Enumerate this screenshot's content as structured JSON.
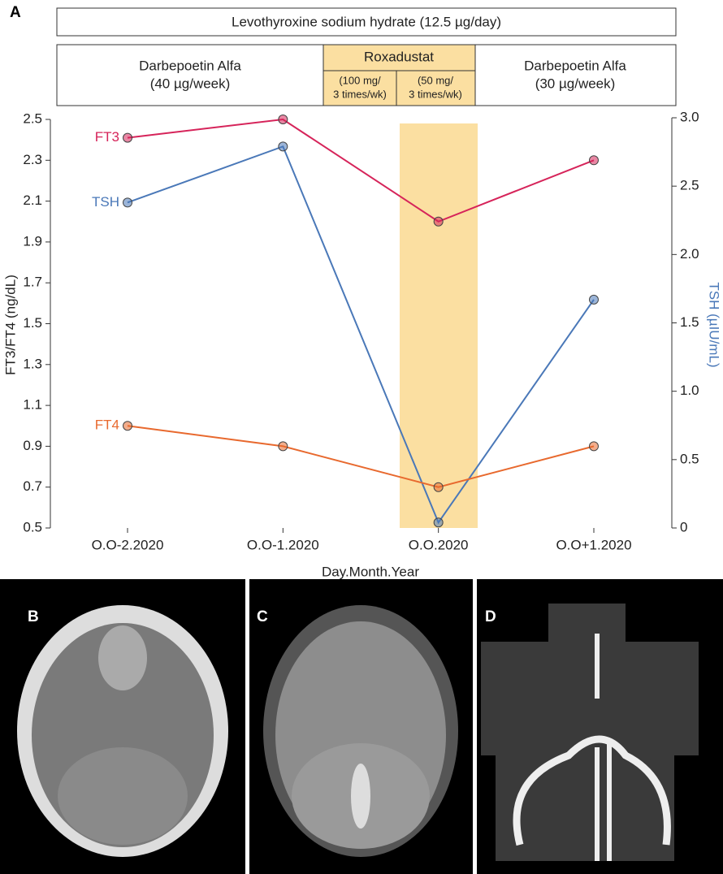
{
  "panel_labels": [
    "A",
    "B",
    "C",
    "D"
  ],
  "chart_data": {
    "type": "line",
    "treatments": {
      "top": "Levothyroxine sodium hydrate (12.5 µg/day)",
      "before": [
        "Darbepoetin Alfa",
        "(40 µg/week)"
      ],
      "middle": "Roxadustat",
      "middle_first": [
        "(100 mg/",
        "3 times/wk)"
      ],
      "middle_second": [
        "(50 mg/",
        "3 times/wk)"
      ],
      "after": [
        "Darbepoetin Alfa",
        "(30 µg/week)"
      ]
    },
    "xlabel": "Day.Month.Year",
    "ylabel": "FT3/FT4 (ng/dL)",
    "y2label": "TSH (µIU/mL)",
    "categories": [
      "O.O-2.2020",
      "O.O-1.2020",
      "O.O.2020",
      "O.O+1.2020"
    ],
    "ylim": [
      0.5,
      2.5
    ],
    "yticks": [
      0.5,
      0.7,
      0.9,
      1.1,
      1.3,
      1.5,
      1.7,
      1.9,
      2.1,
      2.3,
      2.5
    ],
    "y2lim": [
      0,
      3
    ],
    "y2ticks": [
      0,
      0.5,
      {
        "value": 1,
        "label": "1.0"
      },
      1.5,
      {
        "value": 2,
        "label": "2.0"
      },
      2.5,
      {
        "value": 3,
        "label": "3.0"
      }
    ],
    "series": [
      {
        "name": "FT3",
        "color": "#d6245a",
        "values": [
          2.41,
          2.5,
          2.0,
          2.3
        ]
      },
      {
        "name": "TSH",
        "color": "#4a78b8",
        "axis": "y2",
        "values": [
          2.38,
          2.79,
          0.04,
          1.67
        ]
      },
      {
        "name": "FT4",
        "color": "#e8692e",
        "values": [
          1.0,
          0.9,
          0.7,
          0.9
        ]
      }
    ]
  }
}
